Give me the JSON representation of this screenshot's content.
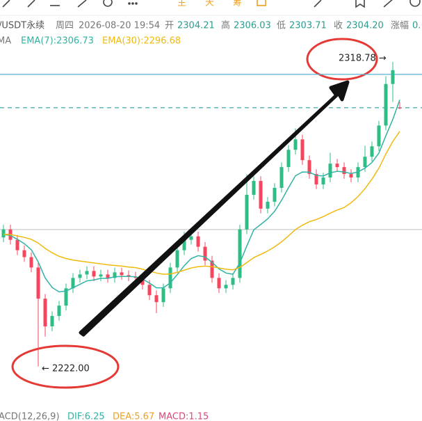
{
  "toolbar": {
    "labels": [
      "主",
      "天",
      "筹"
    ]
  },
  "header": {
    "symbol": "/USDT永续",
    "weekday": "周四",
    "datetime": "2026-08-20 19:54",
    "fields": [
      {
        "label": "开",
        "value": "2304.21"
      },
      {
        "label": "高",
        "value": "2306.03"
      },
      {
        "label": "低",
        "value": "2303.71"
      },
      {
        "label": "收",
        "value": "2304.20"
      },
      {
        "label": "涨幅",
        "value": "0."
      }
    ]
  },
  "indicator_prefix": "MA",
  "chart_data": {
    "type": "candlestick",
    "open": [
      2263.0,
      2265.54,
      2262.24,
      2258.94,
      2256.74,
      2253.44,
      2243.54,
      2234.74,
      2238.04,
      2241.34,
      2246.84,
      2250.14,
      2251.24,
      2252.34,
      2250.58,
      2251.24,
      2250.14,
      2251.9,
      2251.02,
      2250.58,
      2250.14,
      2247.94,
      2244.64,
      2242.44,
      2246.84,
      2253.44,
      2258.94,
      2262.24,
      2263.34,
      2260.04,
      2255.64,
      2250.14,
      2246.84,
      2247.94,
      2250.14,
      2265.54,
      2276.54,
      2280.94,
      2272.14,
      2274.34,
      2278.74,
      2285.34,
      2290.84,
      2294.14,
      2287.54,
      2283.14,
      2279.84,
      2282.04,
      2286.44,
      2285.34,
      2283.14,
      2282.04,
      2285.34,
      2288.64,
      2291.94,
      2298.54,
      2311.74,
      2304.21
    ],
    "high": [
      2267.04,
      2267.04,
      2263.74,
      2260.44,
      2258.24,
      2254.94,
      2245.04,
      2239.54,
      2242.84,
      2248.34,
      2251.64,
      2252.74,
      2253.84,
      2253.84,
      2252.74,
      2252.74,
      2253.4,
      2253.4,
      2252.52,
      2252.08,
      2251.64,
      2249.44,
      2246.14,
      2248.34,
      2254.94,
      2260.44,
      2264.84,
      2265.84,
      2264.84,
      2261.54,
      2257.14,
      2251.64,
      2249.44,
      2251.64,
      2267.04,
      2283.04,
      2282.44,
      2282.44,
      2275.84,
      2280.24,
      2286.84,
      2292.34,
      2297.64,
      2295.64,
      2289.04,
      2284.64,
      2283.54,
      2289.94,
      2287.94,
      2286.84,
      2284.64,
      2286.84,
      2292.14,
      2293.44,
      2300.04,
      2314.24,
      2318.78,
      2306.03
    ],
    "low": [
      2261.5,
      2260.74,
      2257.44,
      2255.24,
      2251.94,
      2222.0,
      2231.5,
      2233.24,
      2236.54,
      2239.84,
      2245.34,
      2248.64,
      2249.74,
      2249.08,
      2249.08,
      2248.64,
      2248.64,
      2249.52,
      2249.08,
      2248.64,
      2246.44,
      2243.14,
      2238.94,
      2240.94,
      2245.34,
      2251.94,
      2257.44,
      2260.74,
      2258.54,
      2254.14,
      2248.64,
      2245.34,
      2245.34,
      2246.44,
      2248.64,
      2264.04,
      2275.04,
      2270.64,
      2270.64,
      2272.84,
      2277.24,
      2283.84,
      2289.34,
      2286.04,
      2281.64,
      2278.34,
      2278.34,
      2280.54,
      2283.84,
      2281.64,
      2280.54,
      2280.54,
      2283.84,
      2287.14,
      2290.44,
      2297.04,
      2306.04,
      2303.71
    ],
    "close": [
      2265.54,
      2262.24,
      2258.94,
      2256.74,
      2253.44,
      2243.54,
      2234.74,
      2238.04,
      2241.34,
      2246.84,
      2250.14,
      2251.24,
      2252.34,
      2250.58,
      2251.24,
      2250.14,
      2251.9,
      2251.02,
      2250.58,
      2250.14,
      2247.94,
      2244.64,
      2242.44,
      2246.84,
      2253.44,
      2258.94,
      2262.24,
      2263.34,
      2260.04,
      2255.64,
      2250.14,
      2246.84,
      2247.94,
      2250.14,
      2265.54,
      2276.54,
      2280.94,
      2272.14,
      2274.34,
      2278.74,
      2285.34,
      2290.84,
      2294.14,
      2287.54,
      2283.14,
      2279.84,
      2282.04,
      2286.44,
      2285.34,
      2283.14,
      2282.04,
      2285.34,
      2288.64,
      2291.94,
      2298.54,
      2311.74,
      2316.14,
      2304.2
    ],
    "up_color": "#2ebd85",
    "down_color": "#f6465d",
    "series": [
      {
        "name": "EMA(7):2306.73",
        "color": "#2fb3a3",
        "values": [
          2264.0,
          2263.6,
          2262.4,
          2261.0,
          2259.1,
          2255.2,
          2250.1,
          2247.1,
          2245.7,
          2246.0,
          2247.0,
          2248.1,
          2249.2,
          2249.5,
          2250.0,
          2250.0,
          2250.5,
          2250.6,
          2250.6,
          2250.5,
          2249.8,
          2248.5,
          2247.0,
          2247.0,
          2248.6,
          2251.2,
          2254.0,
          2256.3,
          2257.2,
          2256.8,
          2255.1,
          2253.0,
          2251.7,
          2251.3,
          2254.9,
          2260.3,
          2265.4,
          2267.1,
          2268.9,
          2271.3,
          2274.8,
          2278.8,
          2282.6,
          2283.8,
          2283.7,
          2282.7,
          2282.5,
          2283.5,
          2284.0,
          2283.8,
          2283.3,
          2283.8,
          2285.0,
          2286.8,
          2289.8,
          2295.3,
          2300.5,
          2306.73
        ]
      },
      {
        "name": "EMA(30):2296.68",
        "color": "#f0b90b",
        "values": [
          2264.0,
          2263.9,
          2263.5,
          2263.0,
          2262.4,
          2261.2,
          2259.5,
          2258.1,
          2257.0,
          2256.3,
          2255.8,
          2255.5,
          2255.2,
          2254.9,
          2254.6,
          2254.3,
          2254.1,
          2253.9,
          2253.6,
          2253.4,
          2252.9,
          2252.3,
          2251.7,
          2251.3,
          2251.4,
          2251.9,
          2252.6,
          2253.3,
          2253.7,
          2253.9,
          2253.7,
          2253.3,
          2252.9,
          2252.7,
          2253.5,
          2255.0,
          2256.6,
          2257.6,
          2258.7,
          2260.0,
          2261.6,
          2263.5,
          2265.5,
          2266.9,
          2268.0,
          2268.7,
          2269.6,
          2270.7,
          2271.7,
          2272.5,
          2274.0,
          2276.0,
          2278.5,
          2281.5,
          2285.0,
          2289.5,
          2293.5,
          2296.68
        ]
      }
    ],
    "ylim": [
      2208,
      2334
    ],
    "reference_lines": [
      {
        "value": 2314.8,
        "color": "#5ab4d6",
        "style": "solid"
      },
      {
        "value": 2304.2,
        "color": "#29a19c",
        "style": "dashed"
      },
      {
        "value": 2265.5,
        "color": "#cccccc",
        "style": "solid"
      }
    ],
    "annotations": [
      "2318.78 →",
      "← 2222.00"
    ]
  },
  "footer": {
    "name": "ACD(12,26,9)",
    "dif": "DIF:6.25",
    "dea": "DEA:5.67",
    "macd": "MACD:1.15"
  }
}
